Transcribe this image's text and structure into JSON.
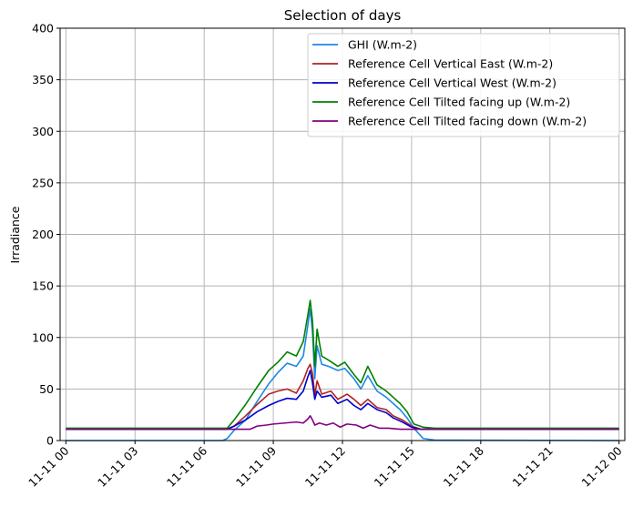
{
  "chart_data": {
    "type": "line",
    "title": "Selection of days",
    "xlabel": "",
    "ylabel": "Irradiance",
    "ylim": [
      0,
      400
    ],
    "xlim": [
      "2023-11-10T23:45",
      "2023-11-12T00:15"
    ],
    "y_ticks": [
      0,
      50,
      100,
      150,
      200,
      250,
      300,
      350,
      400
    ],
    "x_ticks": [
      {
        "label": "11-11 00",
        "hour": 0
      },
      {
        "label": "11-11 03",
        "hour": 3
      },
      {
        "label": "11-11 06",
        "hour": 6
      },
      {
        "label": "11-11 09",
        "hour": 9
      },
      {
        "label": "11-11 12",
        "hour": 12
      },
      {
        "label": "11-11 15",
        "hour": 15
      },
      {
        "label": "11-11 18",
        "hour": 18
      },
      {
        "label": "11-11 21",
        "hour": 21
      },
      {
        "label": "11-12 00",
        "hour": 24
      }
    ],
    "grid": true,
    "legend_position": "top-right",
    "series": [
      {
        "name": "GHI (W.m-2)",
        "color": "#1e88e5",
        "points": [
          [
            0,
            0
          ],
          [
            6.8,
            0
          ],
          [
            7,
            2
          ],
          [
            7.3,
            10
          ],
          [
            7.8,
            20
          ],
          [
            8.3,
            38
          ],
          [
            8.8,
            55
          ],
          [
            9.2,
            66
          ],
          [
            9.6,
            75
          ],
          [
            10,
            72
          ],
          [
            10.3,
            82
          ],
          [
            10.5,
            112
          ],
          [
            10.6,
            128
          ],
          [
            10.7,
            105
          ],
          [
            10.8,
            60
          ],
          [
            10.9,
            92
          ],
          [
            11.1,
            74
          ],
          [
            11.4,
            72
          ],
          [
            11.8,
            68
          ],
          [
            12.1,
            70
          ],
          [
            12.5,
            60
          ],
          [
            12.8,
            50
          ],
          [
            13.1,
            63
          ],
          [
            13.5,
            48
          ],
          [
            13.9,
            42
          ],
          [
            14.2,
            36
          ],
          [
            14.5,
            30
          ],
          [
            14.8,
            22
          ],
          [
            15.1,
            12
          ],
          [
            15.5,
            2
          ],
          [
            16,
            0.5
          ],
          [
            24,
            0
          ]
        ]
      },
      {
        "name": "Reference Cell Vertical East (W.m-2)",
        "color": "#b22222",
        "points": [
          [
            0,
            11
          ],
          [
            7,
            11
          ],
          [
            7.3,
            14
          ],
          [
            7.8,
            24
          ],
          [
            8.3,
            35
          ],
          [
            8.8,
            45
          ],
          [
            9.2,
            48
          ],
          [
            9.6,
            50
          ],
          [
            10,
            46
          ],
          [
            10.3,
            58
          ],
          [
            10.5,
            70
          ],
          [
            10.6,
            74
          ],
          [
            10.7,
            65
          ],
          [
            10.8,
            44
          ],
          [
            10.9,
            58
          ],
          [
            11.1,
            45
          ],
          [
            11.5,
            48
          ],
          [
            11.8,
            40
          ],
          [
            12.2,
            45
          ],
          [
            12.5,
            40
          ],
          [
            12.8,
            34
          ],
          [
            13.1,
            40
          ],
          [
            13.5,
            32
          ],
          [
            13.9,
            30
          ],
          [
            14.2,
            24
          ],
          [
            14.6,
            20
          ],
          [
            15,
            14
          ],
          [
            15.4,
            11
          ],
          [
            24,
            11
          ]
        ]
      },
      {
        "name": "Reference Cell Vertical West (W.m-2)",
        "color": "#0000cd",
        "points": [
          [
            0,
            11
          ],
          [
            7,
            11
          ],
          [
            7.3,
            14
          ],
          [
            7.8,
            20
          ],
          [
            8.3,
            28
          ],
          [
            8.8,
            34
          ],
          [
            9.2,
            38
          ],
          [
            9.6,
            41
          ],
          [
            10,
            40
          ],
          [
            10.3,
            48
          ],
          [
            10.5,
            62
          ],
          [
            10.6,
            68
          ],
          [
            10.7,
            56
          ],
          [
            10.8,
            40
          ],
          [
            10.9,
            48
          ],
          [
            11.1,
            42
          ],
          [
            11.5,
            44
          ],
          [
            11.8,
            36
          ],
          [
            12.2,
            40
          ],
          [
            12.5,
            34
          ],
          [
            12.8,
            30
          ],
          [
            13.1,
            36
          ],
          [
            13.5,
            30
          ],
          [
            13.9,
            27
          ],
          [
            14.2,
            22
          ],
          [
            14.6,
            18
          ],
          [
            15,
            13
          ],
          [
            15.4,
            11
          ],
          [
            24,
            11
          ]
        ]
      },
      {
        "name": "Reference Cell Tilted facing up (W.m-2)",
        "color": "#008000",
        "points": [
          [
            0,
            12
          ],
          [
            7,
            12
          ],
          [
            7.3,
            20
          ],
          [
            7.8,
            35
          ],
          [
            8.3,
            52
          ],
          [
            8.8,
            68
          ],
          [
            9.2,
            76
          ],
          [
            9.6,
            86
          ],
          [
            10,
            82
          ],
          [
            10.3,
            96
          ],
          [
            10.5,
            122
          ],
          [
            10.6,
            136
          ],
          [
            10.7,
            116
          ],
          [
            10.8,
            72
          ],
          [
            10.9,
            108
          ],
          [
            11.1,
            82
          ],
          [
            11.4,
            78
          ],
          [
            11.8,
            72
          ],
          [
            12.1,
            76
          ],
          [
            12.5,
            64
          ],
          [
            12.8,
            56
          ],
          [
            13.1,
            72
          ],
          [
            13.5,
            54
          ],
          [
            13.9,
            48
          ],
          [
            14.2,
            42
          ],
          [
            14.5,
            36
          ],
          [
            14.8,
            28
          ],
          [
            15.1,
            16
          ],
          [
            15.5,
            13
          ],
          [
            16,
            12
          ],
          [
            24,
            12
          ]
        ]
      },
      {
        "name": "Reference Cell Tilted facing down (W.m-2)",
        "color": "#800080",
        "points": [
          [
            0,
            11
          ],
          [
            8,
            11
          ],
          [
            8.3,
            14
          ],
          [
            8.7,
            15
          ],
          [
            9,
            16
          ],
          [
            9.5,
            17
          ],
          [
            10,
            18
          ],
          [
            10.3,
            17
          ],
          [
            10.5,
            21
          ],
          [
            10.6,
            24
          ],
          [
            10.7,
            20
          ],
          [
            10.8,
            15
          ],
          [
            11,
            17
          ],
          [
            11.3,
            15
          ],
          [
            11.6,
            17
          ],
          [
            11.9,
            13
          ],
          [
            12.2,
            16
          ],
          [
            12.6,
            15
          ],
          [
            12.9,
            12
          ],
          [
            13.2,
            15
          ],
          [
            13.6,
            12
          ],
          [
            14,
            12
          ],
          [
            14.5,
            11
          ],
          [
            24,
            11
          ]
        ]
      }
    ]
  }
}
